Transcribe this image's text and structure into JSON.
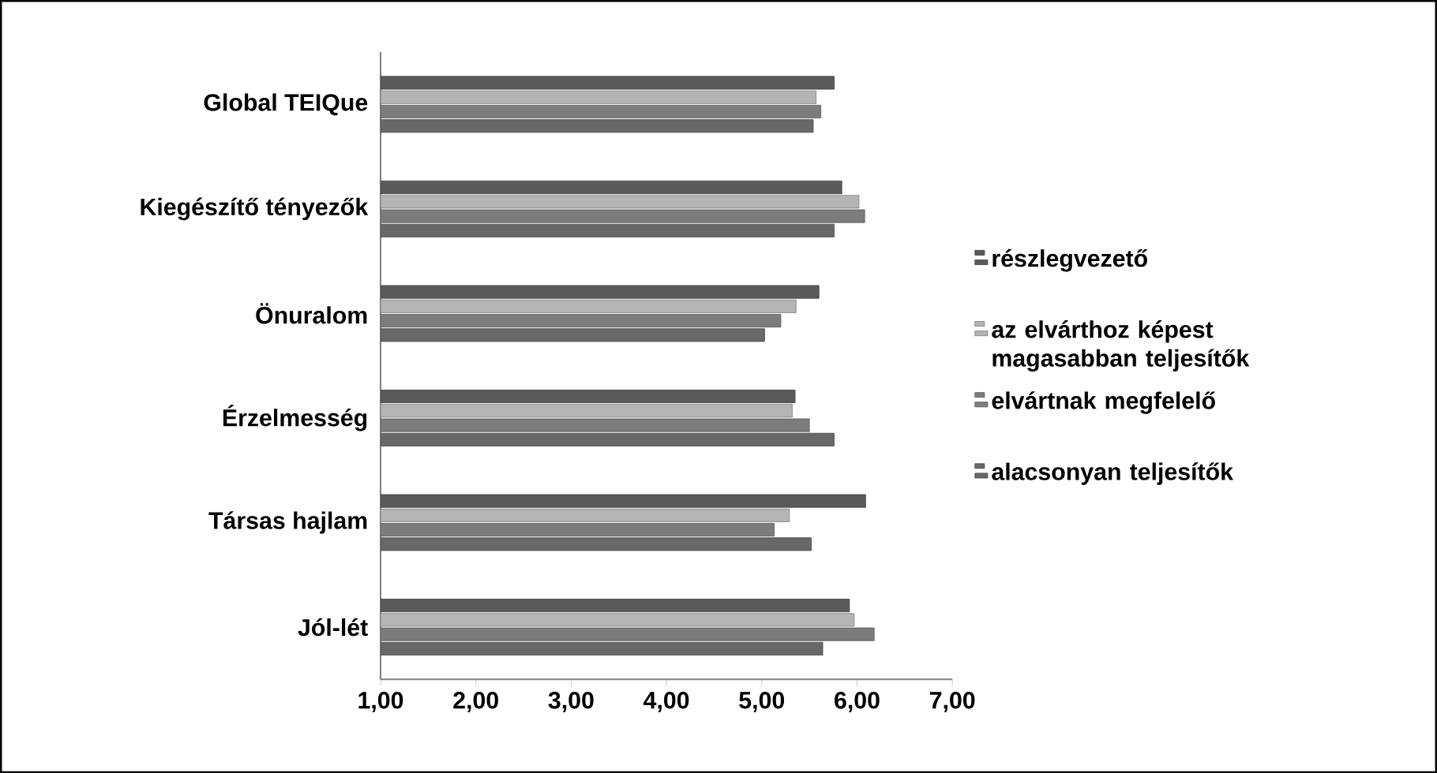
{
  "chart_data": {
    "type": "bar",
    "orientation": "horizontal",
    "categories": [
      "Global TEIQue",
      "Kiegészítő tényezők",
      "Önuralom",
      "Érzelmesség",
      "Társas hajlam",
      "Jól-lét"
    ],
    "series": [
      {
        "name": "részlegvezető",
        "color": "#5a5a5a",
        "values": [
          5.76,
          5.84,
          5.6,
          5.35,
          6.09,
          5.92
        ]
      },
      {
        "name": "az elvárthoz képest magasabban teljesítők",
        "color": "#b4b4b4",
        "values": [
          5.57,
          6.02,
          5.36,
          5.32,
          5.29,
          5.97
        ]
      },
      {
        "name": "elvártnak megfelelő",
        "color": "#7c7c7c",
        "values": [
          5.62,
          6.08,
          5.2,
          5.5,
          5.13,
          6.18
        ]
      },
      {
        "name": "alacsonyan teljesítők",
        "color": "#686868",
        "values": [
          5.54,
          5.76,
          5.03,
          5.76,
          5.52,
          5.64
        ]
      }
    ],
    "xlim": [
      1,
      7
    ],
    "xticks": [
      {
        "value": 1,
        "label": "1,00"
      },
      {
        "value": 2,
        "label": "2,00"
      },
      {
        "value": 3,
        "label": "3,00"
      },
      {
        "value": 4,
        "label": "4,00"
      },
      {
        "value": 5,
        "label": "5,00"
      },
      {
        "value": 6,
        "label": "6,00"
      },
      {
        "value": 7,
        "label": "7,00"
      }
    ],
    "legend": "right"
  }
}
